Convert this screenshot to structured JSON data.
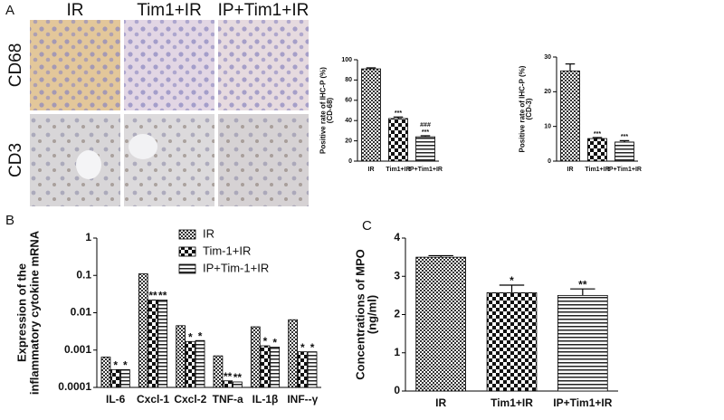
{
  "panels": {
    "A": "A",
    "B": "B",
    "C": "C",
    "columns": [
      "IR",
      "Tim1+IR",
      "IP+Tim1+IR"
    ],
    "rows": [
      "CD68",
      "CD3"
    ]
  },
  "chart_data": [
    {
      "type": "bar",
      "ylabel": [
        "Positive rate of IHC-P (%)",
        "(CD-68)"
      ],
      "categories": [
        "IR",
        "Tim1+IR",
        "IP+Tim1+IR"
      ],
      "values": [
        91,
        42,
        24
      ],
      "errors": [
        1,
        1.5,
        1
      ],
      "annotations": [
        null,
        "***",
        [
          "###",
          "***"
        ]
      ],
      "ylim": [
        0,
        100
      ],
      "yticks": [
        0,
        20,
        40,
        60,
        80,
        100
      ]
    },
    {
      "type": "bar",
      "ylabel": [
        "Positive rate of IHC-P (%)",
        "(CD-3)"
      ],
      "categories": [
        "IR",
        "Tim1+IR",
        "IP+Tim1+IR"
      ],
      "values": [
        26,
        6.5,
        5.5
      ],
      "errors": [
        2,
        0.3,
        0.4
      ],
      "annotations": [
        null,
        "***",
        "***"
      ],
      "ylim": [
        0,
        30
      ],
      "yticks": [
        0,
        10,
        20,
        30
      ]
    },
    {
      "type": "bar",
      "log": true,
      "ylabel": [
        "Expression of  the",
        "inflammatory cytokine mRNA"
      ],
      "categories": [
        "IL-6",
        "Cxcl-1",
        "Cxcl-2",
        "TNF-a",
        "IL-1β",
        "INF--γ"
      ],
      "series": [
        {
          "name": "IR",
          "values": [
            0.00065,
            0.11,
            0.0045,
            0.0007,
            0.0042,
            0.0065
          ],
          "annotations": [
            null,
            null,
            null,
            null,
            null,
            null
          ]
        },
        {
          "name": "Tim-1+IR",
          "values": [
            0.0003,
            0.022,
            0.0017,
            0.00015,
            0.0013,
            0.0009
          ],
          "annotations": [
            "*",
            "**",
            "*",
            "**",
            "*",
            "*"
          ]
        },
        {
          "name": "IP+Tim-1+IR",
          "values": [
            0.0003,
            0.022,
            0.0018,
            0.00014,
            0.0012,
            0.0009
          ],
          "annotations": [
            "*",
            "**",
            "*",
            "**",
            "*",
            "*"
          ]
        }
      ],
      "ylim": [
        0.0001,
        1
      ],
      "yticks": [
        0.0001,
        0.001,
        0.01,
        0.1,
        1
      ]
    },
    {
      "type": "bar",
      "ylabel": [
        "Concentrations of MPO",
        "(ng/ml)"
      ],
      "categories": [
        "IR",
        "Tim1+IR",
        "IP+Tim1+IR"
      ],
      "values": [
        3.5,
        2.57,
        2.5
      ],
      "errors": [
        0.04,
        0.2,
        0.17
      ],
      "annotations": [
        null,
        "*",
        "**"
      ],
      "ylim": [
        0,
        4
      ],
      "yticks": [
        0,
        1,
        2,
        3,
        4
      ]
    }
  ]
}
